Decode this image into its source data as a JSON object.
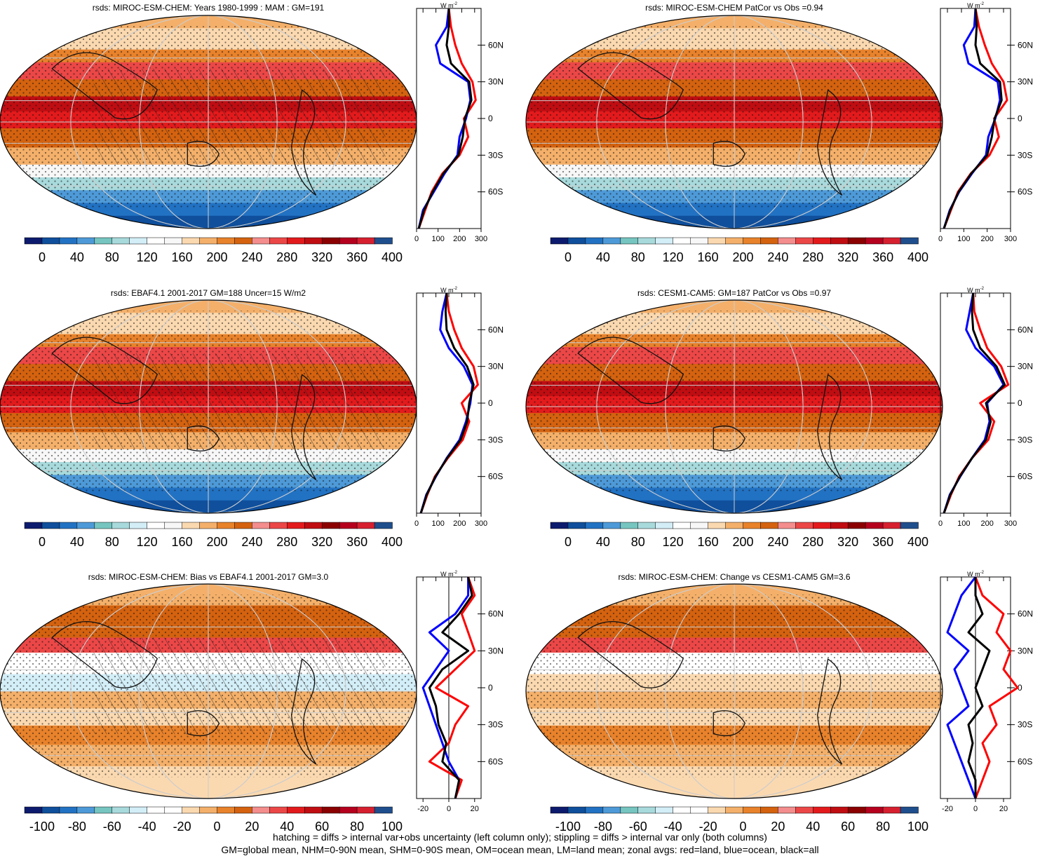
{
  "footer": {
    "line1": "hatching = diffs > internal var+obs uncertainty (left column only); stippling = diffs > internal var only (both columns)",
    "line2": "GM=global mean, NHM=0-90N mean, SHM=0-90S mean, OM=ocean mean, LM=land mean; zonal avgs: red=land, blue=ocean, black=all"
  },
  "zonal_unit": "W m",
  "zonal_unit_exp": "-2",
  "lat_ticks": [
    "60N",
    "30N",
    "0",
    "30S",
    "60S"
  ],
  "palettes": {
    "abs": [
      "#0d1b6e",
      "#0f4f9c",
      "#2272c3",
      "#4e9ad8",
      "#76c5c0",
      "#a8dadc",
      "#d3eef7",
      "#ffffff",
      "#f7f7f7",
      "#fbd9b0",
      "#f4b06a",
      "#e8822b",
      "#d4620f",
      "#f48d8d",
      "#ec4747",
      "#e31a1c",
      "#c00d12",
      "#8b0000",
      "#b5001e",
      "#d62030",
      "#1f4e8c"
    ],
    "diff": [
      "#0d1b6e",
      "#0f4f9c",
      "#2272c3",
      "#4e9ad8",
      "#76c5c0",
      "#a8dadc",
      "#d3eef7",
      "#ffffff",
      "#ffffff",
      "#fbd9b0",
      "#f4b06a",
      "#e8822b",
      "#d4620f",
      "#f48d8d",
      "#ec4747",
      "#e31a1c",
      "#c00d12",
      "#8b0000",
      "#b5001e",
      "#d62030",
      "#1f4e8c"
    ]
  },
  "panels": [
    {
      "title": "rsds: MIROC-ESM-CHEM: Years 1980-1999 : MAM : GM=191",
      "kind": "abs",
      "hatch": true,
      "cbar_labels": [
        "0",
        "40",
        "80",
        "120",
        "160",
        "200",
        "240",
        "280",
        "320",
        "360",
        "400"
      ],
      "zonal_xticks": [
        "0",
        "100",
        "200",
        "300"
      ]
    },
    {
      "title": "rsds: MIROC-ESM-CHEM PatCor vs Obs =0.94",
      "kind": "abs",
      "hatch": false,
      "cbar_labels": [
        "0",
        "40",
        "80",
        "120",
        "160",
        "200",
        "240",
        "280",
        "320",
        "360",
        "400"
      ],
      "zonal_xticks": [
        "0",
        "100",
        "200",
        "300"
      ]
    },
    {
      "title": "rsds: EBAF4.1 2001-2017 GM=188 Uncer=15 W/m2",
      "kind": "abs",
      "hatch": true,
      "cbar_labels": [
        "0",
        "40",
        "80",
        "120",
        "160",
        "200",
        "240",
        "280",
        "320",
        "360",
        "400"
      ],
      "zonal_xticks": [
        "0",
        "100",
        "200",
        "300"
      ]
    },
    {
      "title": "rsds: CESM1-CAM5: GM=187 PatCor vs Obs =0.97",
      "kind": "abs",
      "hatch": false,
      "cbar_labels": [
        "0",
        "40",
        "80",
        "120",
        "160",
        "200",
        "240",
        "280",
        "320",
        "360",
        "400"
      ],
      "zonal_xticks": [
        "0",
        "100",
        "200",
        "300"
      ]
    },
    {
      "title": "rsds: MIROC-ESM-CHEM: Bias vs EBAF4.1 2001-2017 GM=3.0",
      "kind": "diff",
      "hatch": true,
      "cbar_labels": [
        "-100",
        "-80",
        "-60",
        "-40",
        "-20",
        "0",
        "20",
        "40",
        "60",
        "80",
        "100"
      ],
      "zonal_xticks": [
        "-20",
        "0",
        "20"
      ]
    },
    {
      "title": "rsds: MIROC-ESM-CHEM: Change vs CESM1-CAM5 GM=3.6",
      "kind": "diff",
      "hatch": false,
      "cbar_labels": [
        "-100",
        "-80",
        "-60",
        "-40",
        "-20",
        "0",
        "20",
        "40",
        "60",
        "80",
        "100"
      ],
      "zonal_xticks": [
        "-20",
        "0",
        "20"
      ]
    }
  ],
  "chart_data": [
    {
      "type": "line",
      "title": "rsds: MIROC-ESM-CHEM: Years 1980-1999 : MAM : GM=191",
      "x_range": [
        0,
        300
      ],
      "lat": [
        -90,
        -75,
        -60,
        -45,
        -30,
        -15,
        0,
        15,
        30,
        45,
        60,
        75,
        90
      ],
      "series": [
        {
          "color": "red",
          "values": [
            10,
            40,
            70,
            120,
            200,
            240,
            220,
            275,
            260,
            210,
            180,
            160,
            150
          ]
        },
        {
          "color": "blue",
          "values": [
            10,
            30,
            80,
            130,
            190,
            200,
            230,
            250,
            240,
            110,
            90,
            140,
            150
          ]
        },
        {
          "color": "black",
          "values": [
            10,
            35,
            75,
            125,
            195,
            215,
            225,
            255,
            245,
            160,
            140,
            150,
            150
          ]
        }
      ]
    },
    {
      "type": "line",
      "title": "rsds: MIROC-ESM-CHEM PatCor vs Obs =0.94",
      "x_range": [
        0,
        300
      ],
      "lat": [
        -90,
        -75,
        -60,
        -45,
        -30,
        -15,
        0,
        15,
        30,
        45,
        60,
        75,
        90
      ],
      "series": [
        {
          "color": "red",
          "values": [
            15,
            45,
            75,
            130,
            210,
            250,
            230,
            285,
            270,
            220,
            190,
            165,
            150
          ]
        },
        {
          "color": "blue",
          "values": [
            15,
            40,
            80,
            135,
            195,
            205,
            235,
            255,
            245,
            120,
            100,
            145,
            150
          ]
        },
        {
          "color": "black",
          "values": [
            15,
            42,
            78,
            132,
            200,
            220,
            232,
            262,
            255,
            170,
            150,
            155,
            150
          ]
        }
      ]
    },
    {
      "type": "line",
      "title": "rsds: EBAF4.1 2001-2017 GM=188 Uncer=15 W/m2",
      "x_range": [
        0,
        300
      ],
      "lat": [
        -90,
        -75,
        -60,
        -45,
        -30,
        -15,
        0,
        15,
        30,
        45,
        60,
        75,
        90
      ],
      "series": [
        {
          "color": "red",
          "values": [
            20,
            50,
            85,
            145,
            215,
            245,
            210,
            285,
            265,
            210,
            175,
            150,
            140
          ]
        },
        {
          "color": "blue",
          "values": [
            20,
            45,
            90,
            140,
            200,
            230,
            250,
            260,
            220,
            150,
            110,
            120,
            140
          ]
        },
        {
          "color": "black",
          "values": [
            20,
            47,
            88,
            142,
            205,
            235,
            245,
            265,
            235,
            175,
            140,
            135,
            140
          ]
        }
      ]
    },
    {
      "type": "line",
      "title": "rsds: CESM1-CAM5: GM=187 PatCor vs Obs =0.97",
      "x_range": [
        0,
        300
      ],
      "lat": [
        -90,
        -75,
        -60,
        -45,
        -30,
        -15,
        0,
        15,
        30,
        45,
        60,
        75,
        90
      ],
      "series": [
        {
          "color": "red",
          "values": [
            15,
            45,
            80,
            135,
            205,
            230,
            170,
            290,
            260,
            200,
            170,
            145,
            140
          ]
        },
        {
          "color": "blue",
          "values": [
            15,
            40,
            85,
            135,
            190,
            210,
            200,
            270,
            230,
            150,
            110,
            125,
            140
          ]
        },
        {
          "color": "black",
          "values": [
            15,
            42,
            83,
            135,
            195,
            215,
            195,
            275,
            240,
            170,
            140,
            135,
            140
          ]
        }
      ]
    },
    {
      "type": "line",
      "title": "rsds: MIROC-ESM-CHEM: Bias vs EBAF4.1 2001-2017 GM=3.0",
      "x_range": [
        -25,
        25
      ],
      "lat": [
        -90,
        -75,
        -60,
        -45,
        -30,
        -15,
        0,
        15,
        30,
        45,
        60,
        75,
        90
      ],
      "series": [
        {
          "color": "red",
          "values": [
            5,
            10,
            -15,
            0,
            5,
            15,
            -10,
            5,
            20,
            15,
            10,
            20,
            15
          ]
        },
        {
          "color": "blue",
          "values": [
            5,
            8,
            0,
            -5,
            -10,
            -15,
            -20,
            -10,
            0,
            -15,
            5,
            15,
            15
          ]
        },
        {
          "color": "black",
          "values": [
            5,
            8,
            -5,
            -2,
            -8,
            -10,
            -15,
            -5,
            15,
            -5,
            8,
            18,
            15
          ]
        }
      ]
    },
    {
      "type": "line",
      "title": "rsds: MIROC-ESM-CHEM: Change vs CESM1-CAM5 GM=3.6",
      "x_range": [
        -25,
        25
      ],
      "lat": [
        -90,
        -75,
        -60,
        -45,
        -30,
        -15,
        0,
        15,
        30,
        45,
        60,
        75,
        90
      ],
      "series": [
        {
          "color": "red",
          "values": [
            0,
            5,
            10,
            5,
            15,
            10,
            30,
            20,
            25,
            15,
            20,
            5,
            0
          ]
        },
        {
          "color": "blue",
          "values": [
            0,
            -5,
            -10,
            -15,
            -20,
            -5,
            -10,
            -15,
            -5,
            -20,
            -15,
            -10,
            0
          ]
        },
        {
          "color": "black",
          "values": [
            0,
            0,
            -5,
            -2,
            -5,
            5,
            0,
            5,
            10,
            -5,
            5,
            0,
            0
          ]
        }
      ]
    }
  ]
}
